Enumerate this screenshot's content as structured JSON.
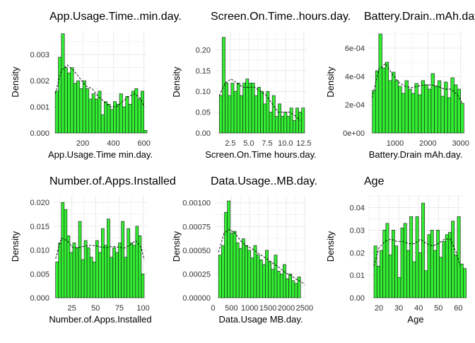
{
  "style": {
    "bar_fill": "#33ee33",
    "bar_stroke": "#111111",
    "grid_color": "#ebebeb",
    "text_color": "#333333",
    "title_color": "#000000"
  },
  "chart_data": [
    {
      "type": "bar",
      "subtype": "histogram-density",
      "title": "App.Usage.Time..min.day.",
      "xlabel": "App.Usage.Time min.day.",
      "ylabel": "Density",
      "xlim": [
        10,
        620
      ],
      "ylim": [
        0,
        0.0039
      ],
      "xticks": [
        200,
        400,
        600
      ],
      "xtick_labels": [
        "200",
        "400",
        "600"
      ],
      "yticks": [
        0,
        0.001,
        0.002,
        0.003
      ],
      "ytick_labels": [
        "0.000",
        "0.001",
        "0.002",
        "0.003"
      ],
      "bins": {
        "start": 20,
        "width": 20
      },
      "values": [
        0.0016,
        0.0029,
        0.0038,
        0.0025,
        0.0023,
        0.0025,
        0.0019,
        0.002,
        0.0017,
        0.002,
        0.0017,
        0.0013,
        0.0015,
        0.0013,
        0.0016,
        0.0007,
        0.0012,
        0.0011,
        0.0009,
        0.0012,
        0.0011,
        0.0015,
        0.001,
        0.0014,
        0.0011,
        0.0016,
        0.0017,
        0.0013,
        0.0016,
        0.0001
      ],
      "density": {
        "x": [
          20,
          60,
          100,
          140,
          180,
          220,
          260,
          300,
          340,
          380,
          420,
          460,
          500,
          540,
          580,
          600
        ],
        "y": [
          0.0015,
          0.0024,
          0.0026,
          0.0024,
          0.0021,
          0.0018,
          0.0017,
          0.0014,
          0.0012,
          0.001,
          0.001,
          0.0012,
          0.0014,
          0.0015,
          0.0013,
          0.001
        ]
      }
    },
    {
      "type": "bar",
      "subtype": "histogram-density",
      "title": "Screen.On.Time..hours.day.",
      "xlabel": "Screen.On.Time hours.day.",
      "ylabel": "Density",
      "xlim": [
        0.4,
        12.9
      ],
      "ylim": [
        0,
        0.245
      ],
      "xticks": [
        2.5,
        5.0,
        7.5,
        10.0,
        12.5
      ],
      "xtick_labels": [
        "2.5",
        "5.0",
        "7.5",
        "10.0",
        "12.5"
      ],
      "yticks": [
        0,
        0.05,
        0.1,
        0.15,
        0.2
      ],
      "ytick_labels": [
        "0.00",
        "0.05",
        "0.10",
        "0.15",
        "0.20"
      ],
      "bins": {
        "start": 1.0,
        "width": 0.4
      },
      "values": [
        0.09,
        0.23,
        0.12,
        0.09,
        0.12,
        0.1,
        0.12,
        0.09,
        0.12,
        0.13,
        0.12,
        0.12,
        0.09,
        0.11,
        0.1,
        0.07,
        0.1,
        0.05,
        0.09,
        0.04,
        0.07,
        0.04,
        0.05,
        0.04,
        0.06,
        0.03,
        0.06,
        0.05,
        0.06
      ],
      "density": {
        "x": [
          1.0,
          1.8,
          2.6,
          3.4,
          4.2,
          5.0,
          5.8,
          6.6,
          7.4,
          8.2,
          9.0,
          9.8,
          10.6,
          11.4,
          12.0
        ],
        "y": [
          0.09,
          0.12,
          0.13,
          0.12,
          0.11,
          0.11,
          0.11,
          0.1,
          0.09,
          0.07,
          0.05,
          0.05,
          0.05,
          0.04,
          0.03
        ]
      }
    },
    {
      "type": "bar",
      "subtype": "histogram-density",
      "title": "Battery.Drain..mAh.day.",
      "xlabel": "Battery.Drain mAh.day.",
      "ylabel": "Density",
      "xlim": [
        200,
        3050
      ],
      "ylim": [
        0,
        0.00072
      ],
      "xticks": [
        1000,
        2000,
        3000
      ],
      "xtick_labels": [
        "1000",
        "2000",
        "3000"
      ],
      "yticks": [
        0,
        0.0002,
        0.0004,
        0.0006
      ],
      "ytick_labels": [
        "0e+00",
        "2e-04",
        "4e-04",
        "6e-04"
      ],
      "bins": {
        "start": 300,
        "width": 100
      },
      "values": [
        0.0003,
        0.00044,
        0.0007,
        0.00046,
        0.0005,
        0.00037,
        0.00043,
        0.00037,
        0.00033,
        0.00028,
        0.00037,
        0.00031,
        0.00028,
        0.00035,
        0.00027,
        0.00037,
        0.00034,
        0.00031,
        0.00042,
        0.00033,
        0.00037,
        0.00026,
        0.00036,
        0.00025,
        0.00039,
        0.00034,
        0.00031,
        0.00021
      ],
      "density": {
        "x": [
          300,
          500,
          700,
          900,
          1100,
          1300,
          1500,
          1700,
          1900,
          2100,
          2300,
          2500,
          2700,
          2900,
          3050
        ],
        "y": [
          0.00025,
          0.00045,
          0.00049,
          0.00042,
          0.00036,
          0.00033,
          0.00032,
          0.00033,
          0.00034,
          0.00034,
          0.00033,
          0.00031,
          0.00031,
          0.00027,
          0.00021
        ]
      }
    },
    {
      "type": "bar",
      "subtype": "histogram-density",
      "title": "Number.of.Apps.Installed",
      "xlabel": "Number.of.Apps.Installed",
      "ylabel": "Density",
      "xlim": [
        6,
        104
      ],
      "ylim": [
        0,
        0.0215
      ],
      "xticks": [
        25,
        50,
        75,
        100
      ],
      "xtick_labels": [
        "25",
        "50",
        "75",
        "100"
      ],
      "yticks": [
        0,
        0.005,
        0.01,
        0.015,
        0.02
      ],
      "ytick_labels": [
        "0.000",
        "0.005",
        "0.010",
        "0.015",
        "0.020"
      ],
      "bins": {
        "start": 8,
        "width": 3
      },
      "values": [
        0.0075,
        0.0115,
        0.02,
        0.0185,
        0.013,
        0.0095,
        0.0115,
        0.0105,
        0.016,
        0.008,
        0.012,
        0.0105,
        0.0085,
        0.0075,
        0.012,
        0.0095,
        0.0145,
        0.011,
        0.0165,
        0.0085,
        0.0105,
        0.0095,
        0.0115,
        0.016,
        0.0085,
        0.0145,
        0.0115,
        0.011,
        0.015,
        0.013,
        0.005
      ],
      "density": {
        "x": [
          8,
          14,
          20,
          26,
          32,
          38,
          44,
          50,
          56,
          62,
          68,
          74,
          80,
          86,
          92,
          98,
          101
        ],
        "y": [
          0.0082,
          0.0125,
          0.012,
          0.0105,
          0.0105,
          0.0108,
          0.011,
          0.0109,
          0.0106,
          0.0105,
          0.0108,
          0.0106,
          0.0104,
          0.011,
          0.012,
          0.0105,
          0.008
        ]
      }
    },
    {
      "type": "bar",
      "subtype": "histogram-density",
      "title": "Data.Usage..MB.day.",
      "xlabel": "Data.Usage MB.day.",
      "ylabel": "Density",
      "xlim": [
        50,
        2560
      ],
      "ylim": [
        0,
        0.00108
      ],
      "xticks": [
        0,
        500,
        1000,
        1500,
        2000,
        2500
      ],
      "xtick_labels": [
        "0",
        "500",
        "1000",
        "1500",
        "2000",
        "2500"
      ],
      "yticks": [
        0,
        0.00025,
        0.0005,
        0.00075,
        0.001
      ],
      "ytick_labels": [
        "0.00000",
        "0.00025",
        "0.00050",
        "0.00075",
        "0.00100"
      ],
      "bins": {
        "start": 150,
        "width": 80
      },
      "values": [
        0.00045,
        0.00055,
        0.0009,
        0.00102,
        0.00068,
        0.0007,
        0.00058,
        0.00052,
        0.00062,
        0.00055,
        0.0005,
        0.00042,
        0.00055,
        0.00045,
        0.0004,
        0.00035,
        0.0005,
        0.00038,
        0.0003,
        0.00045,
        0.00028,
        0.00025,
        0.00035,
        0.0002,
        0.00025,
        0.00018,
        0.00015,
        0.00022
      ],
      "density": {
        "x": [
          150,
          300,
          450,
          600,
          750,
          900,
          1050,
          1200,
          1350,
          1500,
          1650,
          1800,
          1950,
          2100,
          2250,
          2400,
          2510
        ],
        "y": [
          0.00048,
          0.00068,
          0.00072,
          0.00068,
          0.0006,
          0.00055,
          0.00052,
          0.00048,
          0.00044,
          0.0004,
          0.00036,
          0.00032,
          0.00027,
          0.00024,
          0.0002,
          0.00017,
          0.00014
        ]
      }
    },
    {
      "type": "bar",
      "subtype": "histogram-density",
      "title": "Age",
      "xlabel": "Age",
      "ylabel": "Density",
      "xlim": [
        15,
        62
      ],
      "ylim": [
        0,
        0.0455
      ],
      "xticks": [
        20,
        30,
        40,
        50,
        60
      ],
      "xtick_labels": [
        "20",
        "30",
        "40",
        "50",
        "60"
      ],
      "yticks": [
        0,
        0.01,
        0.02,
        0.03,
        0.04
      ],
      "ytick_labels": [
        "0.00",
        "0.01",
        "0.02",
        "0.03",
        "0.04"
      ],
      "bins": {
        "start": 17.5,
        "width": 1.5
      },
      "values": [
        0.023,
        0.014,
        0.021,
        0.03,
        0.033,
        0.019,
        0.03,
        0.023,
        0.009,
        0.031,
        0.033,
        0.021,
        0.036,
        0.016,
        0.036,
        0.02,
        0.042,
        0.012,
        0.028,
        0.03,
        0.021,
        0.03,
        0.018,
        0.025,
        0.028,
        0.029,
        0.034,
        0.019,
        0.036,
        0.015,
        0.013
      ],
      "density": {
        "x": [
          17.5,
          20,
          23,
          26,
          29,
          32,
          35,
          38,
          41,
          44,
          47,
          50,
          53,
          56,
          59,
          61
        ],
        "y": [
          0.014,
          0.022,
          0.025,
          0.026,
          0.025,
          0.025,
          0.024,
          0.024,
          0.026,
          0.024,
          0.023,
          0.024,
          0.026,
          0.026,
          0.02,
          0.014
        ]
      }
    }
  ]
}
